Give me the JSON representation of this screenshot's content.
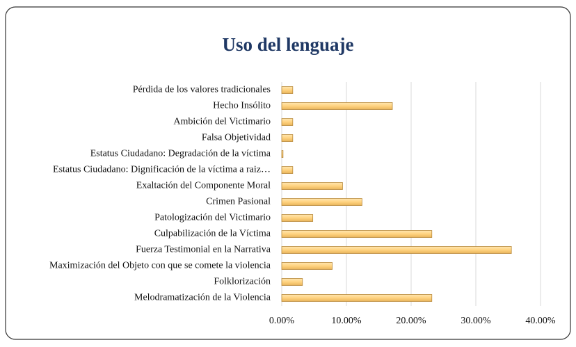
{
  "chart_data": {
    "type": "hbar",
    "title": "Uso del lenguaje",
    "categories": [
      "Pérdida de los valores tradicionales",
      "Hecho Insólito",
      "Ambición del Victimario",
      "Falsa Objetividad",
      "Estatus Ciudadano: Degradación de la víctima",
      "Estatus Ciudadano: Dignificación de la víctima a raiz…",
      "Exaltación del Componente Moral",
      "Crimen Pasional",
      "Patologización del Victimario",
      "Culpabilización de la Víctima",
      "Fuerza Testimonial en la Narrativa",
      "Maximización del Objeto con que se comete la violencia",
      "Folklorización",
      "Melodramatización de la Violencia"
    ],
    "values": [
      1.7,
      17.1,
      1.7,
      1.7,
      0.2,
      1.7,
      9.4,
      12.4,
      4.8,
      23.2,
      35.5,
      7.8,
      3.2,
      23.2
    ],
    "color": "#ffd27f",
    "xlim": [
      0,
      40
    ],
    "xticks": [
      {
        "value": 0,
        "label": "0.00%"
      },
      {
        "value": 10,
        "label": "10.00%"
      },
      {
        "value": 20,
        "label": "20.00%"
      },
      {
        "value": 30,
        "label": "30.00%"
      },
      {
        "value": 40,
        "label": "40.00%"
      }
    ],
    "grid": true
  }
}
